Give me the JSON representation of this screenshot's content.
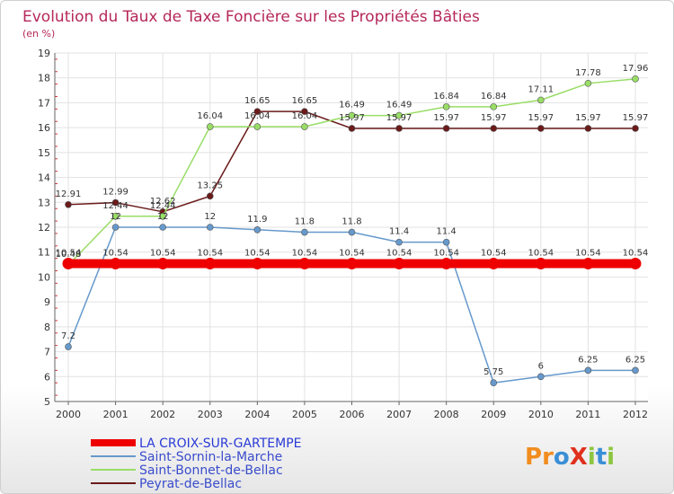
{
  "chart_data": {
    "type": "line",
    "title": "Evolution du Taux de Taxe Foncière sur les Propriétés Bâties",
    "subtitle": "(en %)",
    "xlabel": "",
    "ylabel": "(en %)",
    "ylim": [
      5,
      19
    ],
    "yticks": [
      "5",
      "6",
      "7",
      "8",
      "9",
      "10",
      "11",
      "12",
      "13",
      "14",
      "15",
      "16",
      "17",
      "18",
      "19"
    ],
    "categories": [
      "2000",
      "2001",
      "2002",
      "2003",
      "2004",
      "2005",
      "2006",
      "2007",
      "2008",
      "2009",
      "2010",
      "2011",
      "2012"
    ],
    "grid": true,
    "legend_position": "bottom-left",
    "series": [
      {
        "name": "Peyrat-de-Bellac",
        "color": "#6b1a1a",
        "values": [
          12.91,
          12.99,
          12.62,
          13.25,
          16.65,
          16.65,
          15.97,
          15.97,
          15.97,
          15.97,
          15.97,
          15.97,
          15.97
        ],
        "labels": [
          "12.91",
          "12.99",
          "12.62",
          "13.25",
          "16.65",
          "16.65",
          "15.97",
          "15.97",
          "15.97",
          "15.97",
          "15.97",
          "15.97",
          "15.97"
        ]
      },
      {
        "name": "Saint-Bonnet-de-Bellac",
        "color": "#99dd66",
        "values": [
          10.48,
          12.44,
          12.44,
          16.04,
          16.04,
          16.04,
          16.49,
          16.49,
          16.84,
          16.84,
          17.11,
          17.78,
          17.96
        ],
        "labels": [
          "10.48",
          "12.44",
          "12.44",
          "16.04",
          "16.04",
          "16.04",
          "16.49",
          "16.49",
          "16.84",
          "16.84",
          "17.11",
          "17.78",
          "17.96"
        ]
      },
      {
        "name": "Saint-Sornin-la-Marche",
        "color": "#6699cc",
        "values": [
          7.2,
          12,
          12,
          12,
          11.9,
          11.8,
          11.8,
          11.4,
          11.4,
          5.75,
          6,
          6.25,
          6.25
        ],
        "labels": [
          "7.2",
          "12",
          "12",
          "12",
          "11.9",
          "11.8",
          "11.8",
          "11.4",
          "11.4",
          "5.75",
          "6",
          "6.25",
          "6.25"
        ]
      },
      {
        "name": "LA CROIX-SUR-GARTEMPE",
        "color": "#ee0000",
        "values": [
          10.54,
          10.54,
          10.54,
          10.54,
          10.54,
          10.54,
          10.54,
          10.54,
          10.54,
          10.54,
          10.54,
          10.54,
          10.54
        ],
        "labels": [
          "10.54",
          "10.54",
          "10.54",
          "10.54",
          "10.54",
          "10.54",
          "10.54",
          "10.54",
          "10.54",
          "10.54",
          "10.54",
          "10.54",
          "10.54"
        ]
      }
    ],
    "legend": [
      {
        "name": "LA CROIX-SUR-GARTEMPE",
        "color": "#ee0000"
      },
      {
        "name": "Saint-Sornin-la-Marche",
        "color": "#6699cc"
      },
      {
        "name": "Saint-Bonnet-de-Bellac",
        "color": "#99dd66"
      },
      {
        "name": "Peyrat-de-Bellac",
        "color": "#6b1a1a"
      }
    ]
  },
  "logo": {
    "text": "ProXiti",
    "letters": [
      {
        "ch": "P",
        "color": "#f28c1e"
      },
      {
        "ch": "r",
        "color": "#f28c1e"
      },
      {
        "ch": "o",
        "color": "#3a8fd6"
      },
      {
        "ch": "X",
        "color": "#e0301e"
      },
      {
        "ch": "i",
        "color": "#8cc63f"
      },
      {
        "ch": "t",
        "color": "#3a8fd6"
      },
      {
        "ch": "i",
        "color": "#8cc63f"
      }
    ]
  }
}
